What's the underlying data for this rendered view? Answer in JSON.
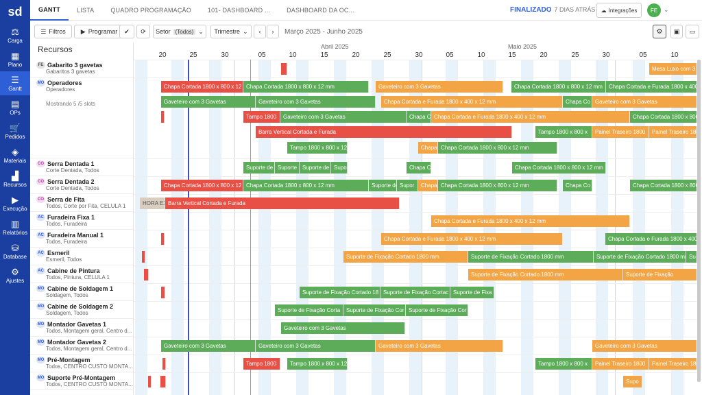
{
  "app": {
    "logo": "sd"
  },
  "sidebar": {
    "items": [
      {
        "label": "Carga",
        "icon": "scale-icon",
        "glyph": "⚖"
      },
      {
        "label": "Plano",
        "icon": "calendar-icon",
        "glyph": "▦"
      },
      {
        "label": "Gantt",
        "icon": "gantt-icon",
        "glyph": "☰"
      },
      {
        "label": "OPs",
        "icon": "document-icon",
        "glyph": "▤"
      },
      {
        "label": "Pedidos",
        "icon": "cart-icon",
        "glyph": "🛒"
      },
      {
        "label": "Materiais",
        "icon": "cube-icon",
        "glyph": "◈"
      },
      {
        "label": "Recursos",
        "icon": "factory-icon",
        "glyph": "▟"
      },
      {
        "label": "Execução",
        "icon": "play-icon",
        "glyph": "▶"
      },
      {
        "label": "Relatórios",
        "icon": "chart-icon",
        "glyph": "▥"
      },
      {
        "label": "Database",
        "icon": "database-icon",
        "glyph": "⛁"
      },
      {
        "label": "Ajustes",
        "icon": "gear-icon",
        "glyph": "⚙"
      }
    ],
    "active": "Gantt"
  },
  "tabs": [
    "GANTT",
    "LISTA",
    "QUADRO PROGRAMAÇÃO",
    "101- DASHBOARD ...",
    "DASHBOARD DA OC..."
  ],
  "status": {
    "label": "FINALIZADO",
    "time": "7 DIAS ATRÁS"
  },
  "header": {
    "integrations": "Integrações",
    "avatar": "FE",
    "chevron": "⌄"
  },
  "toolbar": {
    "filters": "Filtros",
    "program": "Programar",
    "sector_label": "Setor",
    "sector_value": "(Todos)",
    "period": "Trimestre",
    "range": "Março 2025 - Junho 2025",
    "check": "✔",
    "refresh": "⟳",
    "prev": "‹",
    "next": "›",
    "settings": "⚙",
    "save": "▣",
    "folder": "▭"
  },
  "resources_title": "Recursos",
  "timeline": {
    "months": [
      "Abril 2025",
      "Maio 2025"
    ],
    "days": [
      "20",
      "25",
      "30",
      "05",
      "10",
      "15",
      "20",
      "25",
      "30",
      "05",
      "10",
      "15",
      "20",
      "25",
      "30",
      "05",
      "10"
    ]
  },
  "resources": [
    {
      "type": "FE",
      "name": "Gabarito 3 gavetas",
      "sub": "Gabaritos 3 gavetas"
    },
    {
      "type": "MO",
      "name": "Operadores",
      "sub": "Operadores",
      "slots": "Mostrando 5 /5 slots"
    },
    {
      "type": "CO",
      "name": "Serra Dentada 1",
      "sub": "Corte Dentada, Todos"
    },
    {
      "type": "CO",
      "name": "Serra Dentada 2",
      "sub": "Corte Dentada, Todos"
    },
    {
      "type": "CO",
      "name": "Serra de Fita",
      "sub": "Todos, Corte por Fita, CELULA 1"
    },
    {
      "type": "AC",
      "name": "Furadeira Fixa 1",
      "sub": "Todos, Furadeira"
    },
    {
      "type": "AC",
      "name": "Furadeira Manual 1",
      "sub": "Todos, Furadeira"
    },
    {
      "type": "AC",
      "name": "Esmeril",
      "sub": "Esmeril, Todos"
    },
    {
      "type": "AC",
      "name": "Cabine de Pintura",
      "sub": "Todos, Pintura, CELULA 1"
    },
    {
      "type": "MO",
      "name": "Cabine de Soldagem 1",
      "sub": "Soldagem, Todos"
    },
    {
      "type": "MO",
      "name": "Cabine de Soldagem 2",
      "sub": "Soldagem, Todos"
    },
    {
      "type": "MO",
      "name": "Montador Gavetas 1",
      "sub": "Todos, Montagem geral, Centro d..."
    },
    {
      "type": "MO",
      "name": "Montador Gavetas 2",
      "sub": "Todos, Montagem geral, Centro d..."
    },
    {
      "type": "MO",
      "name": "Pré-Montagem",
      "sub": "Todos, CENTRO CUSTO MONTA..."
    },
    {
      "type": "MO",
      "name": "Suporte Pré-Montagem",
      "sub": "Todos, CENTRO CUSTO MONTA..."
    }
  ],
  "tasks": [
    [
      "Gabarito 3 gavetas",
      409,
      418,
      "red",
      ""
    ],
    [
      "Gabarito 3 gavetas",
      946,
      1016,
      "orange",
      "Mesa Luxo com 3"
    ],
    [
      "Operadores1",
      234,
      354,
      "red",
      "Chapa Cortada 1800 x 800 x 12"
    ],
    [
      "Operadores1",
      354,
      537,
      "green",
      "Chapa Cortada 1800 x 800 x 12 mm"
    ],
    [
      "Operadores1",
      547,
      733,
      "orange",
      "Gaveteiro com 3 Gavetas"
    ],
    [
      "Operadores1",
      745,
      883,
      "green",
      "Chapa Cortada 1800 x 800 x 12 mm"
    ],
    [
      "Operadores1",
      883,
      1016,
      "green",
      "Chapa Cortada e Furada 1800 x 400"
    ],
    [
      "Operadores2",
      234,
      372,
      "green",
      "Gaveteiro com 3 Gavetas"
    ],
    [
      "Operadores2",
      372,
      547,
      "green",
      "Gaveteiro com 3 Gavetas"
    ],
    [
      "Operadores2",
      555,
      820,
      "orange",
      "Chapa Cortada e Furada 1800 x 400 x 12 mm"
    ],
    [
      "Operadores2",
      820,
      863,
      "green",
      "Chapa Co"
    ],
    [
      "Operadores2",
      863,
      1016,
      "orange",
      "Gaveteiro com 3 Gavetas"
    ],
    [
      "Operadores3",
      234,
      237,
      "red",
      ""
    ],
    [
      "Operadores3",
      354,
      408,
      "red",
      "Tampo 1800"
    ],
    [
      "Operadores3",
      408,
      592,
      "green",
      "Gaveteiro com 3 Gavetas"
    ],
    [
      "Operadores3",
      592,
      628,
      "green",
      "Chapa C"
    ],
    [
      "Operadores3",
      628,
      918,
      "orange",
      "Chapa Cortada e Furada 1800 x 400 x 12 mm"
    ],
    [
      "Operadores3",
      918,
      1016,
      "green",
      "Chapa Cortada 1800 x 800 x 12"
    ],
    [
      "Operadores4",
      372,
      746,
      "red",
      "Barra Vertical Cortada e Furada"
    ],
    [
      "Operadores4",
      780,
      863,
      "green",
      "Tampo 1800 x 800 x"
    ],
    [
      "Operadores4",
      863,
      946,
      "orange",
      "Painel Traseiro 1800"
    ],
    [
      "Operadores4",
      946,
      1016,
      "orange",
      "Painel Traseiro 1800"
    ],
    [
      "Operadores5",
      418,
      506,
      "green",
      "Tampo 1800 x 800 x 12"
    ],
    [
      "Operadores5",
      609,
      638,
      "orange",
      "Chapa"
    ],
    [
      "Operadores5",
      638,
      812,
      "green",
      "Chapa Cortada 1800 x 800 x 12 mm"
    ],
    [
      "Serra Dentada 1",
      354,
      400,
      "green",
      "Suporte de"
    ],
    [
      "Serra Dentada 1",
      400,
      436,
      "green",
      "Suporte"
    ],
    [
      "Serra Dentada 1",
      436,
      482,
      "green",
      "Suporte de"
    ],
    [
      "Serra Dentada 1",
      482,
      506,
      "green",
      "Supo"
    ],
    [
      "Serra Dentada 1",
      592,
      628,
      "green",
      "Chapa C"
    ],
    [
      "Serra Dentada 1",
      746,
      883,
      "green",
      "Chapa Cortada 1800 x 800 x 12 mm"
    ],
    [
      "Serra Dentada 2",
      234,
      354,
      "red",
      "Chapa Cortada 1800 x 800 x 12"
    ],
    [
      "Serra Dentada 2",
      354,
      537,
      "green",
      "Chapa Cortada 1800 x 800 x 12 mm"
    ],
    [
      "Serra Dentada 2",
      537,
      578,
      "green",
      "Suporte de"
    ],
    [
      "Serra Dentada 2",
      578,
      609,
      "green",
      "Supor"
    ],
    [
      "Serra Dentada 2",
      609,
      638,
      "orange",
      "Chapa"
    ],
    [
      "Serra Dentada 2",
      638,
      812,
      "green",
      "Chapa Cortada 1800 x 800 x 12 mm"
    ],
    [
      "Serra Dentada 2",
      820,
      863,
      "green",
      "Chapa Co"
    ],
    [
      "Serra Dentada 2",
      918,
      1016,
      "green",
      "Chapa Cortada 1800 x 800 x 12"
    ],
    [
      "Serra de Fita",
      203,
      240,
      "gray",
      "HORA EXTRA"
    ],
    [
      "Serra de Fita",
      240,
      582,
      "red",
      "Barra Vertical Cortada e Furada"
    ],
    [
      "Furadeira Fixa 1",
      628,
      918,
      "orange",
      "Chapa Cortada e Furada 1800 x 400 x 12 mm"
    ],
    [
      "Furadeira Manual 1",
      234,
      237,
      "red",
      ""
    ],
    [
      "Furadeira Manual 1",
      555,
      820,
      "orange",
      "Chapa Cortada e Furada 1800 x 400 x 12 mm"
    ],
    [
      "Furadeira Manual 1",
      882,
      1016,
      "green",
      "Chapa Cortada e Furada 1800 x 400"
    ],
    [
      "Esmeril",
      206,
      209,
      "red",
      ""
    ],
    [
      "Esmeril",
      500,
      682,
      "orange",
      "Suporte de Fixação Cortado 1800 mm"
    ],
    [
      "Esmeril",
      682,
      865,
      "green",
      "Suporte de Fixação Cortado 1800 mm"
    ],
    [
      "Esmeril",
      865,
      1000,
      "green",
      "Suporte de Fixação Cortado 1800 mm"
    ],
    [
      "Esmeril",
      1000,
      1016,
      "green",
      "Su"
    ],
    [
      "Cabine de Pintura",
      209,
      216,
      "red",
      ""
    ],
    [
      "Cabine de Pintura",
      682,
      908,
      "orange",
      "Suporte de Fixação Cortado 1800 mm"
    ],
    [
      "Cabine de Pintura",
      908,
      1016,
      "orange",
      "Suporte de Fixação"
    ],
    [
      "Cabine de Soldagem 1",
      234,
      240,
      "red",
      ""
    ],
    [
      "Cabine de Soldagem 1",
      436,
      554,
      "green",
      "Suporte de Fixação Cortado 18"
    ],
    [
      "Cabine de Soldagem 1",
      554,
      656,
      "green",
      "Suporte de Fixação Cortac"
    ],
    [
      "Cabine de Soldagem 1",
      656,
      720,
      "green",
      "Suporte de Fixa"
    ],
    [
      "Cabine de Soldagem 2",
      400,
      500,
      "green",
      "Suporte de Fixação Corta"
    ],
    [
      "Cabine de Soldagem 2",
      500,
      591,
      "green",
      "Suporte de Fixação Cor"
    ],
    [
      "Cabine de Soldagem 2",
      591,
      682,
      "green",
      "Suporte de Fixação Cor"
    ],
    [
      "Montador Gavetas 1",
      409,
      590,
      "green",
      "Gaveteiro com 3 Gavetas"
    ],
    [
      "Montador Gavetas 2",
      234,
      372,
      "green",
      "Gaveteiro com 3 Gavetas"
    ],
    [
      "Montador Gavetas 2",
      372,
      547,
      "green",
      "Gaveteiro com 3 Gavetas"
    ],
    [
      "Montador Gavetas 2",
      547,
      733,
      "orange",
      "Gaveteiro com 3 Gavetas"
    ],
    [
      "Montador Gavetas 2",
      863,
      1016,
      "orange",
      "Gaveteiro com 3 Gavetas"
    ],
    [
      "Pré-Montagem",
      236,
      238,
      "red",
      ""
    ],
    [
      "Pré-Montagem",
      354,
      408,
      "red",
      "Tampo 1800"
    ],
    [
      "Pré-Montagem",
      418,
      506,
      "green",
      "Tampo 1800 x 800 x 12"
    ],
    [
      "Pré-Montagem",
      780,
      863,
      "green",
      "Tampo 1800 x 800 x"
    ],
    [
      "Pré-Montagem",
      863,
      946,
      "orange",
      "Painel Traseiro 1800"
    ],
    [
      "Pré-Montagem",
      946,
      1016,
      "orange",
      "Painel Traseiro 1800"
    ],
    [
      "Suporte Pré-Montagem",
      215,
      217,
      "red",
      ""
    ],
    [
      "Suporte Pré-Montagem",
      233,
      241,
      "red",
      ""
    ],
    [
      "Suporte Pré-Montagem",
      908,
      936,
      "orange",
      "Supo"
    ]
  ]
}
